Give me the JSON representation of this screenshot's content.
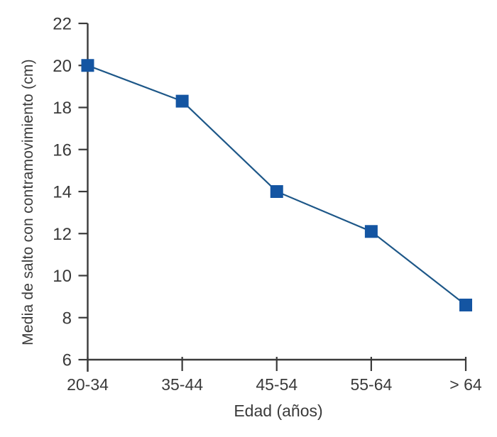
{
  "chart_data": {
    "type": "line",
    "title": "",
    "categories": [
      "20-34",
      "35-44",
      "45-54",
      "55-64",
      "> 64"
    ],
    "values": [
      20.0,
      18.3,
      14.0,
      12.1,
      8.6
    ],
    "xlabel": "Edad (años)",
    "ylabel": "Media de salto con contramovimiento (cm)",
    "ylim": [
      6,
      22
    ],
    "yticks": [
      22,
      20,
      18,
      16,
      14,
      12,
      10,
      8,
      6
    ],
    "grid": false,
    "legend": "none",
    "marker": "square",
    "colors": {
      "line": "#1d5788",
      "marker": "#1455a2",
      "axis": "#3a3a3a",
      "text": "#3a3a3a",
      "background": "#ffffff"
    }
  }
}
